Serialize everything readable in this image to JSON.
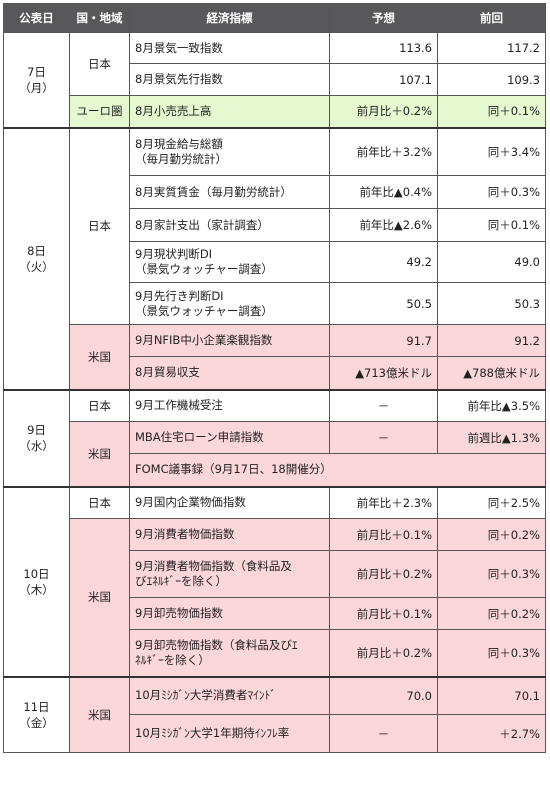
{
  "headers": [
    "公表日",
    "国・地域",
    "経済指標",
    "予想",
    "前回"
  ],
  "dates": {
    "d7": [
      "7日",
      "（月）"
    ],
    "d8": [
      "8日",
      "（火）"
    ],
    "d9": [
      "9日",
      "（水）"
    ],
    "d10": [
      "10日",
      "（木）"
    ],
    "d11": [
      "11日",
      "（金）"
    ]
  },
  "regions": {
    "japan": "日本",
    "euro": "ユーロ圏",
    "us": "米国"
  },
  "rows": [
    {
      "indicator": [
        "8月景気一致指数"
      ],
      "forecast": "113.6",
      "previous": "117.2"
    },
    {
      "indicator": [
        "8月景気先行指数"
      ],
      "forecast": "107.1",
      "previous": "109.3"
    },
    {
      "indicator": [
        "8月小売売上高"
      ],
      "forecast": "前月比＋0.2%",
      "previous": "同＋0.1%"
    },
    {
      "indicator": [
        "8月現金給与総額",
        "（毎月勤労統計）"
      ],
      "forecast": "前年比＋3.2%",
      "previous": "同＋3.4%"
    },
    {
      "indicator": [
        "8月実質賃金（毎月勤労統計）"
      ],
      "forecast": "前年比▲0.4%",
      "previous": "同＋0.3%"
    },
    {
      "indicator": [
        "8月家計支出（家計調査）"
      ],
      "forecast": "前年比▲2.6%",
      "previous": "同＋0.1%"
    },
    {
      "indicator": [
        "9月現状判断DI",
        "（景気ウォッチャー調査）"
      ],
      "forecast": "49.2",
      "previous": "49.0"
    },
    {
      "indicator": [
        "9月先行き判断DI",
        "（景気ウォッチャー調査）"
      ],
      "forecast": "50.5",
      "previous": "50.3"
    },
    {
      "indicator": [
        "9月NFIB中小企業楽観指数"
      ],
      "forecast": "91.7",
      "previous": "91.2"
    },
    {
      "indicator": [
        "8月貿易収支"
      ],
      "forecast": "▲713億米ドル",
      "previous": "▲788億米ドル"
    },
    {
      "indicator": [
        "9月工作機械受注"
      ],
      "forecast": "－",
      "previous": "前年比▲3.5%"
    },
    {
      "indicator": [
        "MBA住宅ローン申請指数"
      ],
      "forecast": "－",
      "previous": "前週比▲1.3%"
    },
    {
      "indicator": [
        "FOMC議事録（9月17日、18開催分）"
      ]
    },
    {
      "indicator": [
        "9月国内企業物価指数"
      ],
      "forecast": "前年比＋2.3%",
      "previous": "同＋2.5%"
    },
    {
      "indicator": [
        "9月消費者物価指数"
      ],
      "forecast": "前月比＋0.1%",
      "previous": "同＋0.2%"
    },
    {
      "indicator": [
        "9月消費者物価指数（食料品及",
        "びｴﾈﾙｷﾞｰを除く）"
      ],
      "forecast": "前月比＋0.2%",
      "previous": "同＋0.3%"
    },
    {
      "indicator": [
        "9月卸売物価指数"
      ],
      "forecast": "前月比＋0.1%",
      "previous": "同＋0.2%"
    },
    {
      "indicator": [
        "9月卸売物価指数（食料品及びｴ",
        "ﾈﾙｷﾞｰを除く）"
      ],
      "forecast": "前月比＋0.2%",
      "previous": "同＋0.3%"
    },
    {
      "indicator": [
        "10月ﾐｼｶﾞﾝ大学消費者ﾏｲﾝﾄﾞ"
      ],
      "forecast": "70.0",
      "previous": "70.1"
    },
    {
      "indicator": [
        "10月ﾐｼｶﾞﾝ大学1年期待ｲﾝﾌﾚ率"
      ],
      "forecast": "－",
      "previous": "＋2.7%"
    }
  ]
}
